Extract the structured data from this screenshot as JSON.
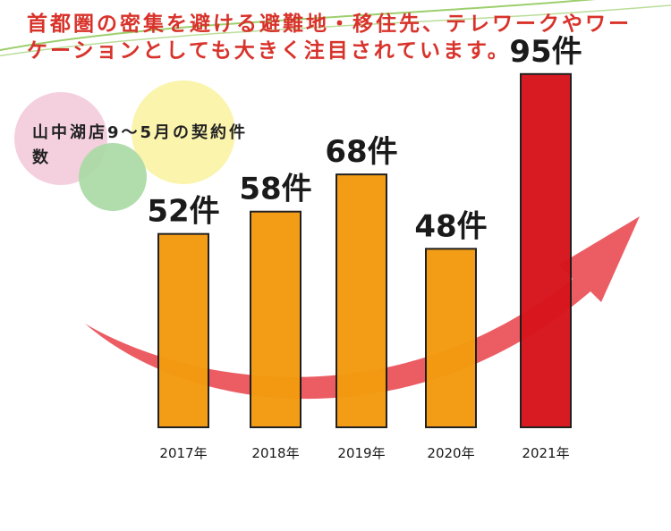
{
  "headline": "首都圏の密集を避ける避難地・移住先、テレワークやワーケーションとしても大きく注目されています。",
  "chart_data": {
    "type": "bar",
    "title": "山中湖店9～5月の契約件数",
    "categories": [
      "2017年",
      "2018年",
      "2019年",
      "2020年",
      "2021年"
    ],
    "values": [
      52,
      58,
      68,
      48,
      95
    ],
    "value_labels": [
      "52件",
      "58件",
      "68件",
      "48件",
      "95件"
    ],
    "unit": "件",
    "ylim": [
      0,
      100
    ],
    "colors": {
      "default": "#f39a0f",
      "highlight": "#d7141b",
      "outline": "#1a1a1a",
      "arrow": "#e8474d",
      "circle_pink": "#f2c8d8",
      "circle_yellow": "#fbf3a4",
      "circle_green": "#a9d9a4",
      "swoosh": "#9dcf6d"
    },
    "highlight_index": 4
  }
}
